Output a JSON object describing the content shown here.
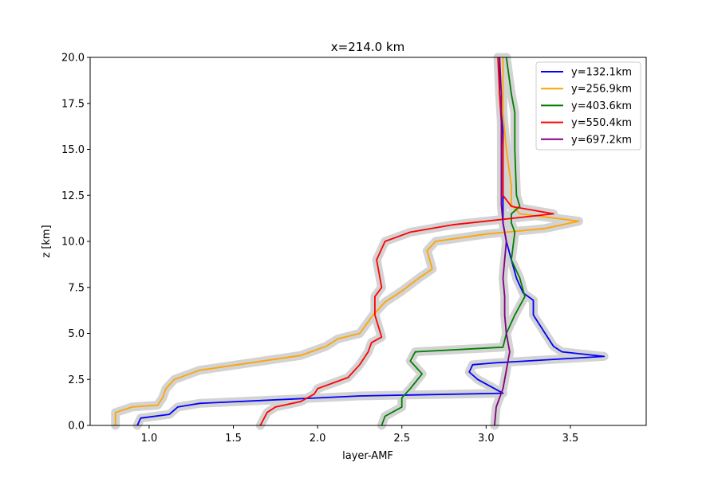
{
  "chart_data": {
    "type": "line",
    "title": "x=214.0 km",
    "xlabel": "layer-AMF",
    "ylabel": "z [km]",
    "xlim": [
      0.65,
      3.95
    ],
    "ylim": [
      0,
      20
    ],
    "xticks": [
      "1.0",
      "1.5",
      "2.0",
      "2.5",
      "3.0",
      "3.5"
    ],
    "yticks": [
      "0.0",
      "2.5",
      "5.0",
      "7.5",
      "10.0",
      "12.5",
      "15.0",
      "17.5",
      "20.0"
    ],
    "legend_position": "top-right",
    "uncertainty_color": "#d3d3d3",
    "series": [
      {
        "name": "y=132.1km",
        "color": "#0000ff",
        "points": [
          [
            0.93,
            0
          ],
          [
            0.95,
            0.4
          ],
          [
            1.12,
            0.6
          ],
          [
            1.17,
            1.0
          ],
          [
            1.3,
            1.2
          ],
          [
            2.25,
            1.6
          ],
          [
            3.1,
            1.75
          ],
          [
            3.05,
            2.0
          ],
          [
            2.95,
            2.5
          ],
          [
            2.9,
            2.9
          ],
          [
            2.92,
            3.3
          ],
          [
            3.05,
            3.4
          ],
          [
            3.7,
            3.75
          ],
          [
            3.45,
            4.0
          ],
          [
            3.4,
            4.3
          ],
          [
            3.35,
            5.0
          ],
          [
            3.28,
            6.0
          ],
          [
            3.28,
            6.8
          ],
          [
            3.22,
            7.2
          ],
          [
            3.18,
            8.0
          ],
          [
            3.15,
            9.0
          ],
          [
            3.12,
            10.0
          ],
          [
            3.1,
            11.0
          ],
          [
            3.1,
            12.0
          ],
          [
            3.1,
            14.0
          ],
          [
            3.1,
            16.0
          ],
          [
            3.08,
            18.0
          ],
          [
            3.08,
            20.0
          ]
        ]
      },
      {
        "name": "y=256.9km",
        "color": "#ffa500",
        "points": [
          [
            0.8,
            0
          ],
          [
            0.8,
            0.7
          ],
          [
            0.9,
            1.0
          ],
          [
            1.05,
            1.1
          ],
          [
            1.08,
            1.5
          ],
          [
            1.1,
            2.0
          ],
          [
            1.15,
            2.5
          ],
          [
            1.3,
            3.0
          ],
          [
            1.9,
            3.8
          ],
          [
            2.05,
            4.3
          ],
          [
            2.12,
            4.7
          ],
          [
            2.25,
            5.0
          ],
          [
            2.33,
            6.0
          ],
          [
            2.4,
            6.7
          ],
          [
            2.5,
            7.3
          ],
          [
            2.6,
            8.0
          ],
          [
            2.68,
            8.5
          ],
          [
            2.65,
            9.5
          ],
          [
            2.7,
            10.0
          ],
          [
            3.0,
            10.4
          ],
          [
            3.35,
            10.7
          ],
          [
            3.55,
            11.1
          ],
          [
            3.2,
            11.5
          ],
          [
            3.15,
            12.0
          ],
          [
            3.15,
            13.0
          ],
          [
            3.12,
            15.0
          ],
          [
            3.1,
            17.0
          ],
          [
            3.1,
            20.0
          ]
        ]
      },
      {
        "name": "y=403.6km",
        "color": "#008000",
        "points": [
          [
            2.38,
            0
          ],
          [
            2.4,
            0.5
          ],
          [
            2.5,
            1.0
          ],
          [
            2.5,
            1.5
          ],
          [
            2.55,
            2.0
          ],
          [
            2.62,
            2.8
          ],
          [
            2.55,
            3.5
          ],
          [
            2.58,
            4.0
          ],
          [
            3.1,
            4.25
          ],
          [
            3.12,
            5.0
          ],
          [
            3.17,
            6.0
          ],
          [
            3.23,
            7.0
          ],
          [
            3.2,
            8.0
          ],
          [
            3.15,
            9.0
          ],
          [
            3.17,
            10.5
          ],
          [
            3.15,
            11.0
          ],
          [
            3.15,
            11.5
          ],
          [
            3.2,
            11.9
          ],
          [
            3.18,
            12.5
          ],
          [
            3.17,
            15.0
          ],
          [
            3.17,
            17.0
          ],
          [
            3.15,
            18.0
          ],
          [
            3.12,
            20.0
          ]
        ]
      },
      {
        "name": "y=550.4km",
        "color": "#ff0000",
        "points": [
          [
            1.66,
            0
          ],
          [
            1.7,
            0.7
          ],
          [
            1.75,
            1.0
          ],
          [
            1.9,
            1.3
          ],
          [
            1.98,
            1.7
          ],
          [
            2.0,
            2.0
          ],
          [
            2.18,
            2.6
          ],
          [
            2.25,
            3.3
          ],
          [
            2.3,
            4.0
          ],
          [
            2.32,
            4.5
          ],
          [
            2.38,
            4.8
          ],
          [
            2.34,
            6.0
          ],
          [
            2.34,
            7.0
          ],
          [
            2.38,
            7.5
          ],
          [
            2.35,
            9.0
          ],
          [
            2.4,
            10.0
          ],
          [
            2.55,
            10.5
          ],
          [
            2.8,
            10.9
          ],
          [
            3.4,
            11.5
          ],
          [
            3.15,
            11.9
          ],
          [
            3.1,
            12.5
          ],
          [
            3.1,
            15.0
          ],
          [
            3.08,
            18.0
          ],
          [
            3.07,
            20.0
          ]
        ]
      },
      {
        "name": "y=697.2km",
        "color": "#800080",
        "points": [
          [
            3.05,
            0
          ],
          [
            3.06,
            1.0
          ],
          [
            3.08,
            1.5
          ],
          [
            3.1,
            2.0
          ],
          [
            3.12,
            3.0
          ],
          [
            3.14,
            4.0
          ],
          [
            3.12,
            5.0
          ],
          [
            3.11,
            6.0
          ],
          [
            3.11,
            7.0
          ],
          [
            3.1,
            8.0
          ],
          [
            3.11,
            9.0
          ],
          [
            3.12,
            10.0
          ],
          [
            3.1,
            11.0
          ],
          [
            3.09,
            12.0
          ],
          [
            3.09,
            15.0
          ],
          [
            3.09,
            18.0
          ],
          [
            3.08,
            20.0
          ]
        ]
      }
    ]
  }
}
